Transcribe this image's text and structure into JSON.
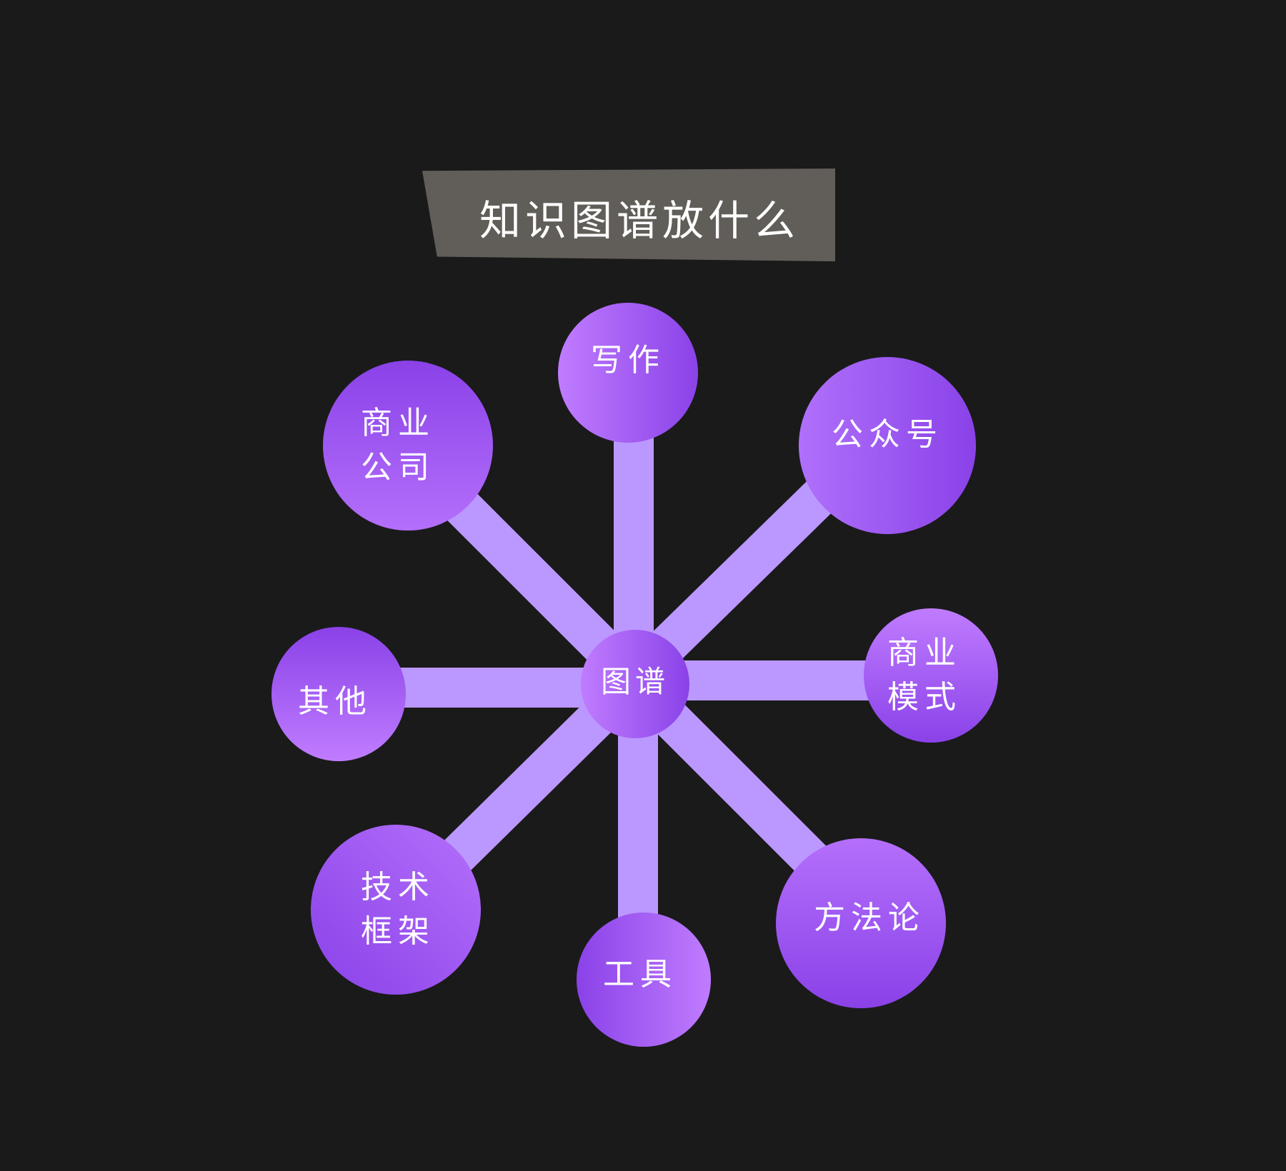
{
  "title": "知识图谱放什么",
  "colors": {
    "background": "#1a1a1b",
    "banner": "#615e59",
    "link": "#bb98ff",
    "node_light": "#c07cff",
    "node_dark": "#8a42e8",
    "text": "#ffffff"
  },
  "hub": {
    "label": "图谱"
  },
  "nodes": [
    {
      "id": "writing",
      "lines": [
        "写作"
      ]
    },
    {
      "id": "business-company",
      "lines": [
        "商业",
        "公司"
      ]
    },
    {
      "id": "official-account",
      "lines": [
        "公众号"
      ]
    },
    {
      "id": "other",
      "lines": [
        "其他"
      ]
    },
    {
      "id": "business-model",
      "lines": [
        "商业",
        "模式"
      ]
    },
    {
      "id": "tech-framework",
      "lines": [
        "技术",
        "框架"
      ]
    },
    {
      "id": "tools",
      "lines": [
        "工具"
      ]
    },
    {
      "id": "methodology",
      "lines": [
        "方法论"
      ]
    }
  ]
}
